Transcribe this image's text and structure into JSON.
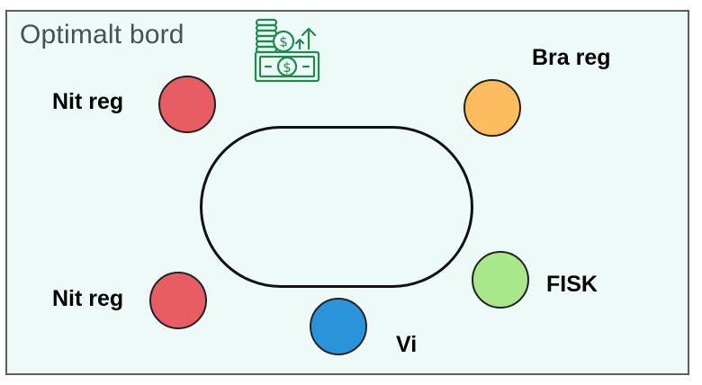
{
  "title": "Optimalt bord",
  "icon": "money-growth-icon",
  "colors": {
    "background": "#eefaf8",
    "nit": "#e85d63",
    "bra": "#fdbd5e",
    "fisk": "#a9e88a",
    "vi": "#2a94db",
    "icon": "#1e8a4c"
  },
  "seats": {
    "nit_top": {
      "label": "Nit reg"
    },
    "bra": {
      "label": "Bra reg"
    },
    "fisk": {
      "label": "FISK"
    },
    "vi": {
      "label": "Vi"
    },
    "nit_bottom": {
      "label": "Nit reg"
    }
  }
}
